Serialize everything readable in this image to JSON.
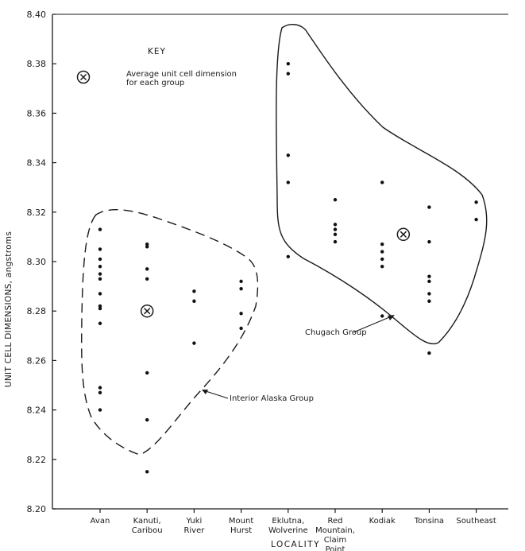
{
  "chart_data": {
    "type": "scatter",
    "xlabel": "LOCALITY",
    "ylabel": "UNIT CELL DIMENSIONS, angstroms",
    "ylim": [
      8.2,
      8.4
    ],
    "yticks": [
      "8.40",
      "8.38",
      "8.36",
      "8.34",
      "8.32",
      "8.30",
      "8.28",
      "8.26",
      "8.24",
      "8.22",
      "8.20"
    ],
    "categories": [
      [
        "Avan"
      ],
      [
        "Kanuti,",
        "Caribou"
      ],
      [
        "Yuki",
        "River"
      ],
      [
        "Mount",
        "Hurst"
      ],
      [
        "Eklutna,",
        "Wolverine"
      ],
      [
        "Red",
        "Mountain,",
        "Claim",
        "Point"
      ],
      [
        "Kodiak"
      ],
      [
        "Tonsina"
      ],
      [
        "Southeast"
      ]
    ],
    "points": [
      {
        "x": "Avan",
        "y": 8.313
      },
      {
        "x": "Avan",
        "y": 8.305
      },
      {
        "x": "Avan",
        "y": 8.301
      },
      {
        "x": "Avan",
        "y": 8.298
      },
      {
        "x": "Avan",
        "y": 8.295
      },
      {
        "x": "Avan",
        "y": 8.293
      },
      {
        "x": "Avan",
        "y": 8.287
      },
      {
        "x": "Avan",
        "y": 8.282
      },
      {
        "x": "Avan",
        "y": 8.281
      },
      {
        "x": "Avan",
        "y": 8.275
      },
      {
        "x": "Avan",
        "y": 8.249
      },
      {
        "x": "Avan",
        "y": 8.247
      },
      {
        "x": "Avan",
        "y": 8.24
      },
      {
        "x": "Kanuti, Caribou",
        "y": 8.307
      },
      {
        "x": "Kanuti, Caribou",
        "y": 8.306
      },
      {
        "x": "Kanuti, Caribou",
        "y": 8.297
      },
      {
        "x": "Kanuti, Caribou",
        "y": 8.293
      },
      {
        "x": "Kanuti, Caribou",
        "y": 8.255
      },
      {
        "x": "Kanuti, Caribou",
        "y": 8.236
      },
      {
        "x": "Kanuti, Caribou",
        "y": 8.215
      },
      {
        "x": "Yuki River",
        "y": 8.288
      },
      {
        "x": "Yuki River",
        "y": 8.284
      },
      {
        "x": "Yuki River",
        "y": 8.267
      },
      {
        "x": "Mount Hurst",
        "y": 8.292
      },
      {
        "x": "Mount Hurst",
        "y": 8.289
      },
      {
        "x": "Mount Hurst",
        "y": 8.279
      },
      {
        "x": "Mount Hurst",
        "y": 8.273
      },
      {
        "x": "Eklutna, Wolverine",
        "y": 8.38
      },
      {
        "x": "Eklutna, Wolverine",
        "y": 8.376
      },
      {
        "x": "Eklutna, Wolverine",
        "y": 8.343
      },
      {
        "x": "Eklutna, Wolverine",
        "y": 8.332
      },
      {
        "x": "Eklutna, Wolverine",
        "y": 8.302
      },
      {
        "x": "Red Mountain, Claim Point",
        "y": 8.325
      },
      {
        "x": "Red Mountain, Claim Point",
        "y": 8.315
      },
      {
        "x": "Red Mountain, Claim Point",
        "y": 8.313
      },
      {
        "x": "Red Mountain, Claim Point",
        "y": 8.311
      },
      {
        "x": "Red Mountain, Claim Point",
        "y": 8.308
      },
      {
        "x": "Kodiak",
        "y": 8.332
      },
      {
        "x": "Kodiak",
        "y": 8.307
      },
      {
        "x": "Kodiak",
        "y": 8.304
      },
      {
        "x": "Kodiak",
        "y": 8.301
      },
      {
        "x": "Kodiak",
        "y": 8.298
      },
      {
        "x": "Kodiak",
        "y": 8.278
      },
      {
        "x": "Tonsina",
        "y": 8.322
      },
      {
        "x": "Tonsina",
        "y": 8.308
      },
      {
        "x": "Tonsina",
        "y": 8.294
      },
      {
        "x": "Tonsina",
        "y": 8.292
      },
      {
        "x": "Tonsina",
        "y": 8.287
      },
      {
        "x": "Tonsina",
        "y": 8.284
      },
      {
        "x": "Tonsina",
        "y": 8.263
      },
      {
        "x": "Southeast",
        "y": 8.324
      },
      {
        "x": "Southeast",
        "y": 8.317
      }
    ],
    "averages": [
      {
        "group": "Interior Alaska Group",
        "x_position": 1.0,
        "y": 8.28
      },
      {
        "group": "Chugach Group",
        "x_position": 6.45,
        "y": 8.311
      }
    ],
    "group_outlines": [
      {
        "name": "Interior Alaska Group",
        "style": "dashed"
      },
      {
        "name": "Chugach Group",
        "style": "solid"
      }
    ],
    "key": {
      "title": "KEY",
      "symbol": "circled-x",
      "lines": [
        "Average unit cell dimension",
        "for each group"
      ]
    },
    "annotations": [
      "Interior Alaska Group",
      "Chugach Group"
    ],
    "grid": false
  }
}
